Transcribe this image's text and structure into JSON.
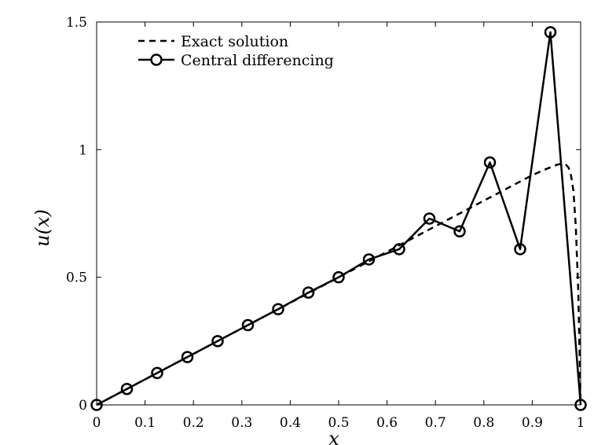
{
  "chart_data": {
    "type": "line",
    "title": "",
    "xlabel": "x",
    "ylabel": "u(x)",
    "xlim": [
      0,
      1
    ],
    "ylim": [
      0,
      1.5
    ],
    "xticks": [
      0,
      0.1,
      0.2,
      0.3,
      0.4,
      0.5,
      0.6,
      0.7,
      0.8,
      0.9,
      1
    ],
    "xtick_labels": [
      "0",
      "0.1",
      "0.2",
      "0.3",
      "0.4",
      "0.5",
      "0.6",
      "0.7",
      "0.8",
      "0.9",
      "1"
    ],
    "yticks": [
      0,
      0.5,
      1,
      1.5
    ],
    "ytick_labels": [
      "0",
      "0.5",
      "1",
      "1.5"
    ],
    "grid": false,
    "legend_position": "top-left",
    "series": [
      {
        "name": "Exact solution",
        "style": "dashed",
        "marker": "none",
        "x": [
          0,
          0.1,
          0.2,
          0.3,
          0.4,
          0.5,
          0.6,
          0.7,
          0.8,
          0.85,
          0.9,
          0.93,
          0.95,
          0.96,
          0.97,
          0.975,
          0.98,
          0.985,
          0.99,
          0.995,
          1
        ],
        "y": [
          0,
          0.1,
          0.2,
          0.3,
          0.4,
          0.5,
          0.6,
          0.7,
          0.8,
          0.85,
          0.9,
          0.925,
          0.94,
          0.945,
          0.94,
          0.93,
          0.9,
          0.84,
          0.7,
          0.45,
          0
        ]
      },
      {
        "name": "Central differencing",
        "style": "solid",
        "marker": "circle",
        "x": [
          0,
          0.0625,
          0.125,
          0.1875,
          0.25,
          0.3125,
          0.375,
          0.4375,
          0.5,
          0.5625,
          0.625,
          0.6875,
          0.75,
          0.8125,
          0.875,
          0.9375,
          1
        ],
        "y": [
          0,
          0.0625,
          0.125,
          0.1875,
          0.25,
          0.3125,
          0.375,
          0.44,
          0.5,
          0.57,
          0.61,
          0.73,
          0.68,
          0.95,
          0.61,
          1.46,
          0
        ]
      }
    ]
  }
}
